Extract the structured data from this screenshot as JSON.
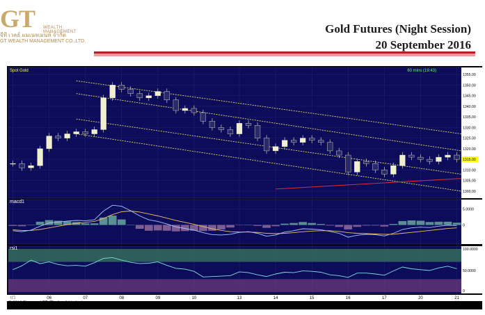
{
  "header": {
    "logo_mark": "GT",
    "logo_tagline": "WEALTH MANAGEMENT",
    "logo_thai": "จีที เวลธ์ แมเนจเมนท์ จำกัด",
    "logo_company": "GT WEALTH MANAGEMENT CO.,LTD.",
    "title": "Gold Futures (Night Session)",
    "date": "20 September 2016"
  },
  "colors": {
    "panel_bg": "#0c0c5a",
    "price_candle": "#f0f0d0",
    "channel_line": "#e8e060",
    "support_line": "#e03030",
    "macd_line": "#a8c8ff",
    "signal_line": "#f0c060",
    "histogram": "#70b0a0",
    "rsi_line": "#80e0e0",
    "rsi_upper_zone": "#3a7a5a",
    "rsi_lower_zone": "#6a3a7a",
    "last_price_tag": "#ffff00"
  },
  "labels": {
    "panel_title": "Spot Gold",
    "interval": "60 mins (19:43)",
    "macd_panel": "macd1",
    "rsi_panel": "rsi1",
    "first_month": "Sep",
    "copyright": "© 2016 Bisnews AFE (Thailand) Limited",
    "site": "bisnews.com"
  },
  "chart_data": [
    {
      "type": "candlestick",
      "title": "Spot Gold",
      "interval": "60 mins (19:43)",
      "x_tick_labels": [
        "03",
        "06",
        "07",
        "08",
        "09",
        "10",
        "13",
        "14",
        "15",
        "16",
        "17",
        "20",
        "21"
      ],
      "y_tick_labels": [
        "1355.00",
        "1350.00",
        "1345.00",
        "1340.00",
        "1335.00",
        "1330.00",
        "1325.00",
        "1320.00",
        "1315.00",
        "1310.00",
        "1305.00",
        "1300.00"
      ],
      "ylim": [
        1298,
        1357
      ],
      "last_price": "1315.00",
      "close": [
        1313,
        1311,
        1312,
        1320,
        1326,
        1325,
        1327,
        1328,
        1327,
        1329,
        1344,
        1350,
        1348,
        1346,
        1344,
        1345,
        1347,
        1343,
        1338,
        1339,
        1337,
        1333,
        1330,
        1329,
        1327,
        1332,
        1331,
        1325,
        1319,
        1321,
        1324,
        1323,
        1325,
        1324,
        1323,
        1319,
        1317,
        1309,
        1314,
        1313,
        1310,
        1308,
        1312,
        1317,
        1316,
        1315,
        1314,
        1316,
        1317,
        1315
      ],
      "channel_lines": [
        {
          "start": [
            7,
            1352
          ],
          "end": [
            50,
            1327
          ]
        },
        {
          "start": [
            7,
            1346
          ],
          "end": [
            50,
            1319
          ]
        },
        {
          "start": [
            7,
            1334
          ],
          "end": [
            50,
            1308
          ]
        },
        {
          "start": [
            7,
            1327
          ],
          "end": [
            50,
            1300
          ]
        }
      ],
      "support_line": {
        "start": [
          29,
          1301
        ],
        "end": [
          50,
          1306
        ]
      }
    },
    {
      "type": "line",
      "title": "macd1",
      "y_tick_labels": [
        "5.0000",
        "0"
      ],
      "ylim": [
        -5.5,
        7
      ],
      "series": [
        {
          "name": "macd",
          "values": [
            -1.8,
            -2.1,
            -1.6,
            -0.4,
            0.6,
            0.9,
            1.2,
            1.4,
            1.3,
            1.6,
            4.3,
            6.1,
            5.8,
            4.4,
            2.8,
            1.6,
            1.1,
            0.3,
            -0.6,
            -1.1,
            -1.6,
            -2.4,
            -3.0,
            -3.1,
            -2.9,
            -2.3,
            -2.1,
            -2.6,
            -3.5,
            -3.1,
            -2.2,
            -1.8,
            -1.2,
            -1.3,
            -1.5,
            -2.0,
            -2.6,
            -3.8,
            -3.2,
            -2.9,
            -3.0,
            -3.4,
            -2.6,
            -1.4,
            -0.9,
            -0.7,
            -0.8,
            -0.4,
            -0.1,
            -0.2
          ]
        },
        {
          "name": "signal",
          "values": [
            -1.5,
            -1.7,
            -1.7,
            -1.4,
            -0.9,
            -0.4,
            0.1,
            0.5,
            0.8,
            1.1,
            2.0,
            3.2,
            4.1,
            4.3,
            4.0,
            3.4,
            2.8,
            2.1,
            1.4,
            0.8,
            0.2,
            -0.5,
            -1.2,
            -1.7,
            -2.1,
            -2.2,
            -2.2,
            -2.3,
            -2.6,
            -2.7,
            -2.6,
            -2.4,
            -2.1,
            -1.9,
            -1.8,
            -1.8,
            -2.0,
            -2.4,
            -2.6,
            -2.7,
            -2.8,
            -2.9,
            -2.9,
            -2.6,
            -2.3,
            -2.0,
            -1.7,
            -1.4,
            -1.1,
            -0.9
          ]
        }
      ]
    },
    {
      "type": "line",
      "title": "rsi1",
      "y_tick_labels": [
        "100.0000",
        "50.0000",
        "0"
      ],
      "ylim": [
        0,
        100
      ],
      "zones": [
        70,
        30
      ],
      "series": [
        {
          "name": "rsi",
          "values": [
            52,
            61,
            74,
            66,
            70,
            64,
            61,
            62,
            60,
            68,
            78,
            80,
            74,
            69,
            66,
            67,
            70,
            62,
            55,
            53,
            48,
            35,
            36,
            37,
            38,
            47,
            45,
            40,
            36,
            42,
            46,
            45,
            49,
            48,
            46,
            40,
            38,
            34,
            44,
            44,
            42,
            39,
            49,
            58,
            54,
            52,
            50,
            56,
            60,
            54
          ]
        }
      ]
    }
  ]
}
